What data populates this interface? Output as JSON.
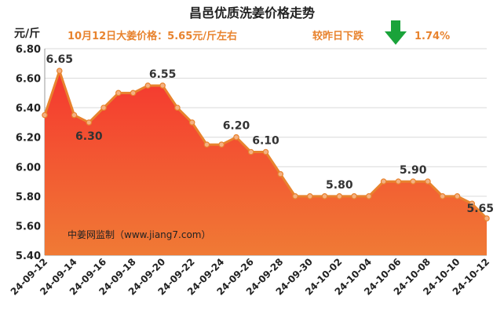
{
  "chart_data": {
    "type": "area",
    "title": "昌邑优质洗姜价格走势",
    "subtitle_left": "10月12日大姜价格：5.65元/斤左右",
    "subtitle_right": "较昨日下跌",
    "change_value": "1.74%",
    "change_direction": "down",
    "ylabel": "元/斤",
    "watermark": "中姜网监制（www.jiang7.com）",
    "ylim": [
      5.4,
      6.8
    ],
    "yticks": [
      "5.40",
      "5.60",
      "5.80",
      "6.00",
      "6.20",
      "6.40",
      "6.60",
      "6.80"
    ],
    "x": [
      "24-09-12",
      "24-09-13",
      "24-09-14",
      "24-09-15",
      "24-09-16",
      "24-09-17",
      "24-09-18",
      "24-09-19",
      "24-09-20",
      "24-09-21",
      "24-09-22",
      "24-09-23",
      "24-09-24",
      "24-09-25",
      "24-09-26",
      "24-09-27",
      "24-09-28",
      "24-09-29",
      "24-09-30",
      "24-10-01",
      "24-10-02",
      "24-10-03",
      "24-10-04",
      "24-10-05",
      "24-10-06",
      "24-10-07",
      "24-10-08",
      "24-10-09",
      "24-10-10",
      "24-10-11",
      "24-10-12"
    ],
    "xtick_labels": [
      "24-09-12",
      "24-09-14",
      "24-09-16",
      "24-09-18",
      "24-09-20",
      "24-09-22",
      "24-09-24",
      "24-09-26",
      "24-09-28",
      "24-09-30",
      "24-10-02",
      "24-10-04",
      "24-10-06",
      "24-10-08",
      "24-10-10",
      "24-10-12"
    ],
    "values": [
      6.35,
      6.65,
      6.35,
      6.3,
      6.4,
      6.5,
      6.5,
      6.55,
      6.55,
      6.4,
      6.3,
      6.15,
      6.15,
      6.2,
      6.1,
      6.1,
      5.95,
      5.8,
      5.8,
      5.8,
      5.8,
      5.8,
      5.8,
      5.9,
      5.9,
      5.9,
      5.9,
      5.8,
      5.8,
      5.75,
      5.65
    ],
    "data_labels": [
      {
        "index": 1,
        "text": "6.65"
      },
      {
        "index": 3,
        "text": "6.30"
      },
      {
        "index": 8,
        "text": "6.55"
      },
      {
        "index": 13,
        "text": "6.20"
      },
      {
        "index": 15,
        "text": "6.10"
      },
      {
        "index": 20,
        "text": "5.80"
      },
      {
        "index": 25,
        "text": "5.90"
      },
      {
        "index": 30,
        "text": "5.65"
      }
    ],
    "colors": {
      "line": "#e8832e",
      "marker_fill": "#f4b183",
      "area_top": "#f5372f",
      "area_bottom": "#f07a35",
      "subtitle": "#e8832e",
      "arrow": "#1aa33a",
      "axis": "#999999",
      "grid": "#d9d9d9"
    }
  }
}
